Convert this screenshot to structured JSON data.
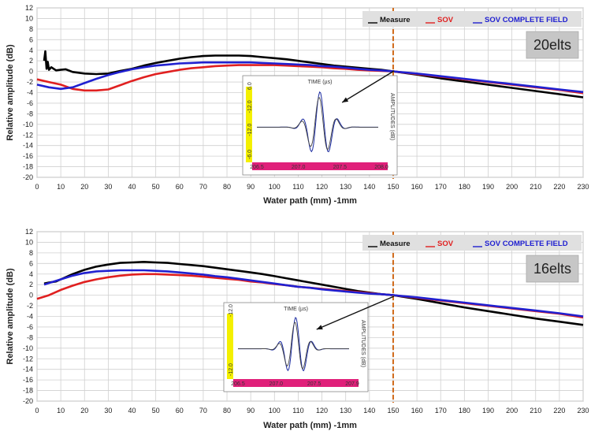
{
  "chart_data": [
    {
      "type": "line",
      "xlabel": "Water path (mm)  -1mm",
      "ylabel": "Relative amplitude (dB)",
      "xlim": [
        0,
        230
      ],
      "ylim": [
        -20,
        12
      ],
      "xticks": [
        0,
        10,
        20,
        30,
        40,
        50,
        60,
        70,
        80,
        90,
        100,
        110,
        120,
        130,
        140,
        150,
        160,
        170,
        180,
        190,
        200,
        210,
        220,
        230
      ],
      "yticks": [
        -20,
        -18,
        -16,
        -14,
        -12,
        -10,
        -8,
        -6,
        -4,
        -2,
        0,
        2,
        4,
        6,
        8,
        10,
        12
      ],
      "grid": true,
      "legend_position": "top-right",
      "box_label": "20elts",
      "reference_line_x": 150,
      "series": [
        {
          "name": "Measure",
          "color": "#000000",
          "x": [
            3,
            3.5,
            4,
            4.5,
            5,
            6,
            8,
            10,
            12,
            15,
            20,
            25,
            30,
            35,
            40,
            45,
            50,
            55,
            60,
            65,
            70,
            75,
            80,
            85,
            90,
            95,
            100,
            105,
            110,
            115,
            120,
            125,
            130,
            135,
            140,
            145,
            150,
            160,
            170,
            180,
            190,
            200,
            210,
            220,
            230
          ],
          "y": [
            2,
            3.8,
            0.5,
            1.8,
            0.3,
            0.8,
            0.2,
            0.3,
            0.4,
            -0.1,
            -0.4,
            -0.5,
            -0.4,
            0.1,
            0.5,
            1.1,
            1.6,
            2.0,
            2.4,
            2.7,
            2.9,
            3.0,
            3.0,
            3.0,
            2.9,
            2.7,
            2.5,
            2.3,
            2.0,
            1.7,
            1.4,
            1.1,
            0.9,
            0.7,
            0.5,
            0.3,
            0,
            -0.6,
            -1.3,
            -1.9,
            -2.5,
            -3.1,
            -3.7,
            -4.3,
            -4.9
          ]
        },
        {
          "name": "SOV",
          "color": "#e02020",
          "x": [
            0,
            5,
            10,
            15,
            20,
            25,
            30,
            35,
            40,
            45,
            50,
            55,
            60,
            65,
            70,
            75,
            80,
            85,
            90,
            95,
            100,
            105,
            110,
            115,
            120,
            125,
            130,
            135,
            140,
            145,
            150,
            160,
            170,
            180,
            190,
            200,
            210,
            220,
            230
          ],
          "y": [
            -1.5,
            -2,
            -2.5,
            -3.3,
            -3.6,
            -3.6,
            -3.4,
            -2.6,
            -1.8,
            -1.1,
            -0.5,
            -0.1,
            0.3,
            0.6,
            0.8,
            1.0,
            1.1,
            1.2,
            1.2,
            1.2,
            1.2,
            1.1,
            1.0,
            0.9,
            0.8,
            0.6,
            0.5,
            0.3,
            0.2,
            0.1,
            0,
            -0.5,
            -1.0,
            -1.5,
            -2.0,
            -2.5,
            -3.0,
            -3.5,
            -4.1
          ]
        },
        {
          "name": "SOV COMPLETE FIELD",
          "color": "#2020d0",
          "x": [
            0,
            5,
            10,
            15,
            20,
            25,
            30,
            35,
            40,
            45,
            50,
            55,
            60,
            65,
            70,
            75,
            80,
            85,
            90,
            95,
            100,
            105,
            110,
            115,
            120,
            125,
            130,
            135,
            140,
            145,
            150,
            160,
            170,
            180,
            190,
            200,
            210,
            220,
            230
          ],
          "y": [
            -2.5,
            -3,
            -3.3,
            -3.0,
            -2.2,
            -1.4,
            -0.7,
            -0.1,
            0.4,
            0.8,
            1.1,
            1.3,
            1.5,
            1.6,
            1.7,
            1.7,
            1.7,
            1.7,
            1.7,
            1.6,
            1.5,
            1.4,
            1.3,
            1.2,
            1.0,
            0.9,
            0.7,
            0.5,
            0.3,
            0.2,
            0,
            -0.4,
            -0.9,
            -1.4,
            -1.9,
            -2.4,
            -2.9,
            -3.4,
            -3.9
          ]
        }
      ],
      "inset": {
        "title": "TIME (µs)",
        "right_label": "AMPLITUDES (dB)",
        "left_ticks": [
          "-6.0",
          "-12.0",
          "-12.0",
          "6.0"
        ],
        "bottom_ticks": [
          "206.5",
          "207.0",
          "207.5",
          "208.0"
        ]
      }
    },
    {
      "type": "line",
      "xlabel": "Water path (mm)  -1mm",
      "ylabel": "Relative amplitude (dB)",
      "xlim": [
        0,
        230
      ],
      "ylim": [
        -20,
        12
      ],
      "xticks": [
        0,
        10,
        20,
        30,
        40,
        50,
        60,
        70,
        80,
        90,
        100,
        110,
        120,
        130,
        140,
        150,
        160,
        170,
        180,
        190,
        200,
        210,
        220,
        230
      ],
      "yticks": [
        -20,
        -18,
        -16,
        -14,
        -12,
        -10,
        -8,
        -6,
        -4,
        -2,
        0,
        2,
        4,
        6,
        8,
        10,
        12
      ],
      "grid": true,
      "legend_position": "top-right",
      "box_label": "16elts",
      "reference_line_x": 150,
      "series": [
        {
          "name": "Measure",
          "color": "#000000",
          "x": [
            3,
            5,
            8,
            10,
            15,
            20,
            25,
            30,
            35,
            40,
            45,
            50,
            55,
            60,
            65,
            70,
            75,
            80,
            85,
            90,
            95,
            100,
            105,
            110,
            115,
            120,
            125,
            130,
            135,
            140,
            145,
            150,
            160,
            170,
            180,
            190,
            200,
            210,
            220,
            230
          ],
          "y": [
            2.2,
            2.4,
            2.6,
            3.0,
            4.0,
            4.8,
            5.4,
            5.8,
            6.1,
            6.2,
            6.3,
            6.2,
            6.1,
            5.9,
            5.7,
            5.5,
            5.2,
            4.9,
            4.6,
            4.3,
            4.0,
            3.6,
            3.2,
            2.8,
            2.4,
            2.0,
            1.6,
            1.2,
            0.8,
            0.5,
            0.2,
            0,
            -0.7,
            -1.5,
            -2.3,
            -3.0,
            -3.7,
            -4.4,
            -5.0,
            -5.6
          ]
        },
        {
          "name": "SOV",
          "color": "#e02020",
          "x": [
            0,
            5,
            10,
            15,
            20,
            25,
            30,
            35,
            40,
            45,
            50,
            55,
            60,
            65,
            70,
            75,
            80,
            85,
            90,
            95,
            100,
            105,
            110,
            115,
            120,
            125,
            130,
            135,
            140,
            145,
            150,
            160,
            170,
            180,
            190,
            200,
            210,
            220,
            230
          ],
          "y": [
            -0.7,
            0,
            1.0,
            1.8,
            2.5,
            3.0,
            3.4,
            3.7,
            3.9,
            4.0,
            4.0,
            3.9,
            3.8,
            3.7,
            3.5,
            3.3,
            3.1,
            2.9,
            2.6,
            2.4,
            2.1,
            1.9,
            1.6,
            1.4,
            1.2,
            1.0,
            0.8,
            0.6,
            0.4,
            0.2,
            0,
            -0.5,
            -1.0,
            -1.5,
            -2.0,
            -2.5,
            -3.0,
            -3.5,
            -4.2
          ]
        },
        {
          "name": "SOV COMPLETE FIELD",
          "color": "#2020d0",
          "x": [
            3,
            5,
            10,
            15,
            20,
            25,
            30,
            35,
            40,
            45,
            50,
            55,
            60,
            65,
            70,
            75,
            80,
            85,
            90,
            95,
            100,
            105,
            110,
            115,
            120,
            125,
            130,
            135,
            140,
            145,
            150,
            160,
            170,
            180,
            190,
            200,
            210,
            220,
            230
          ],
          "y": [
            2.0,
            2.3,
            3.0,
            3.7,
            4.2,
            4.5,
            4.6,
            4.7,
            4.7,
            4.7,
            4.6,
            4.5,
            4.3,
            4.1,
            3.9,
            3.6,
            3.4,
            3.1,
            2.8,
            2.5,
            2.2,
            1.9,
            1.6,
            1.4,
            1.1,
            0.9,
            0.7,
            0.5,
            0.3,
            0.2,
            0,
            -0.4,
            -0.9,
            -1.4,
            -1.9,
            -2.4,
            -2.9,
            -3.4,
            -4.0
          ]
        }
      ],
      "inset": {
        "title": "TIME (µs)",
        "right_label": "AMPLITUDES (dB)",
        "left_ticks": [
          "-12.0",
          "-12.0"
        ],
        "bottom_ticks": [
          "206.5",
          "207.0",
          "207.5",
          "207.9"
        ]
      }
    }
  ]
}
